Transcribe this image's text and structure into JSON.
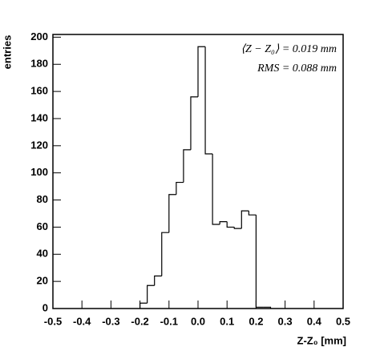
{
  "chart_data": {
    "type": "histogram",
    "ylabel": "entries",
    "xlabel": "Z-Z₀ [mm]",
    "annotations": [
      "⟨Z − Z₀⟩ = 0.019 mm",
      "RMS = 0.088 mm"
    ],
    "bins": [
      -0.2,
      -0.175,
      -0.15,
      -0.125,
      -0.1,
      -0.075,
      -0.05,
      -0.025,
      0,
      0.025,
      0.05,
      0.075,
      0.1,
      0.125,
      0.15,
      0.175,
      0.2,
      0.225,
      0.25
    ],
    "values": [
      4,
      17,
      24,
      56,
      84,
      93,
      117,
      156,
      193,
      114,
      62,
      64,
      60,
      59,
      72,
      69,
      1,
      1
    ],
    "color": "#000000",
    "xlim": [
      -0.5,
      0.5
    ],
    "xticks": [
      -0.5,
      -0.4,
      -0.3,
      -0.2,
      -0.1,
      {
        "value": 0,
        "label": "0.0"
      },
      0.1,
      0.2,
      0.3,
      0.4,
      0.5
    ],
    "ylim": [
      0,
      202
    ],
    "yticks": [
      0,
      20,
      40,
      60,
      80,
      100,
      120,
      140,
      160,
      180,
      200
    ]
  }
}
